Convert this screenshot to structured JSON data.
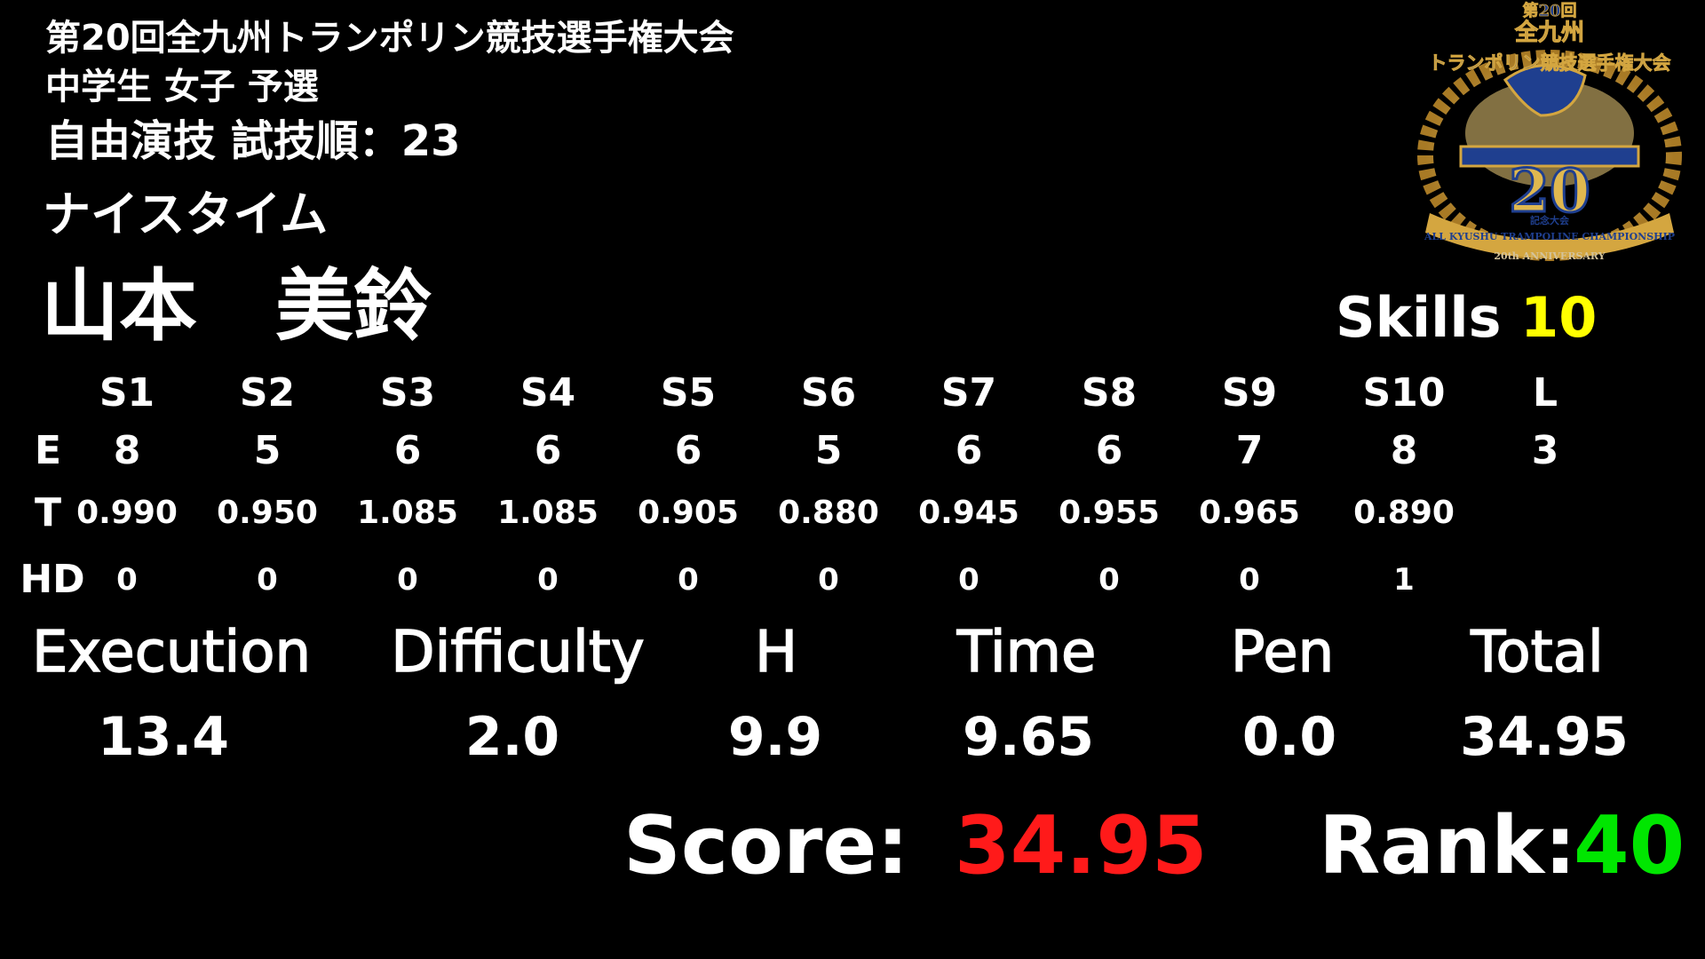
{
  "header": {
    "title": "第20回全九州トランポリン競技選手権大会",
    "category": "中学生 女子 予選",
    "routine": "自由演技 試技順：23",
    "club": "ナイスタイム",
    "athlete": "山本　美鈴"
  },
  "skills": {
    "label": "Skills",
    "count": "10"
  },
  "logo": {
    "line1": "第20回",
    "line2": "全九州",
    "line3": "トランポリン競技選手権大会",
    "number": "20",
    "sub": "記念大会",
    "ribbon": "ALL KYUSHU TRAMPOLINE CHAMPIONSHIP",
    "anniversary": "20th ANNIVERSARY"
  },
  "table": {
    "columns": [
      "S1",
      "S2",
      "S3",
      "S4",
      "S5",
      "S6",
      "S7",
      "S8",
      "S9",
      "S10",
      "L"
    ],
    "rows": [
      {
        "label": "E",
        "values": [
          "8",
          "5",
          "6",
          "6",
          "6",
          "5",
          "6",
          "6",
          "7",
          "8",
          "3"
        ]
      },
      {
        "label": "T",
        "values": [
          "0.990",
          "0.950",
          "1.085",
          "1.085",
          "0.905",
          "0.880",
          "0.945",
          "0.955",
          "0.965",
          "0.890",
          ""
        ]
      },
      {
        "label": "HD",
        "values": [
          "0",
          "0",
          "0",
          "0",
          "0",
          "0",
          "0",
          "0",
          "0",
          "1",
          ""
        ]
      }
    ]
  },
  "summary": [
    {
      "label": "Execution",
      "value": "13.4"
    },
    {
      "label": "Difficulty",
      "value": "2.0"
    },
    {
      "label": "H",
      "value": "9.9"
    },
    {
      "label": "Time",
      "value": "9.65"
    },
    {
      "label": "Pen",
      "value": "0.0"
    },
    {
      "label": "Total",
      "value": "34.95"
    }
  ],
  "result": {
    "score_label": "Score:",
    "score": "34.95",
    "rank_label": "Rank:",
    "rank": "40"
  },
  "colors": {
    "skills_count": "#ffff00",
    "score": "#ff1a1a",
    "rank": "#00e600",
    "logo_gold": "#d4a640",
    "logo_blue": "#1f3f8f"
  }
}
